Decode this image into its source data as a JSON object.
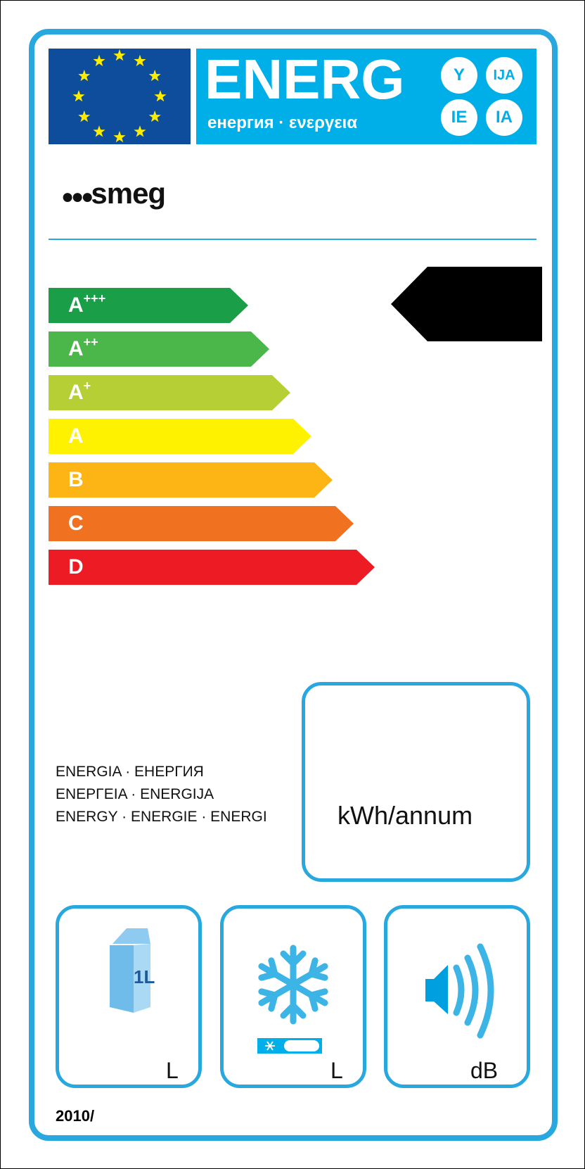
{
  "header": {
    "title": "ENERG",
    "subtitle": "енергия · ενεργεια",
    "suffixes": [
      "Y",
      "IJA",
      "IE",
      "IA"
    ]
  },
  "brand": "smeg",
  "scale": [
    {
      "label": "A",
      "sup": "+++",
      "color": "#1a9f48"
    },
    {
      "label": "A",
      "sup": "++",
      "color": "#4bb649"
    },
    {
      "label": "A",
      "sup": "+",
      "color": "#b5cf34"
    },
    {
      "label": "A",
      "sup": "",
      "color": "#fff200"
    },
    {
      "label": "B",
      "sup": "",
      "color": "#fcb514"
    },
    {
      "label": "C",
      "sup": "",
      "color": "#f07220"
    },
    {
      "label": "D",
      "sup": "",
      "color": "#ed1c24"
    }
  ],
  "energy_lines": [
    "ENERGIA · ЕНЕРГИЯ",
    "ΕΝΕΡΓΕΙΑ · ENERGIJA",
    "ENERGY · ENERGIE · ENERGI"
  ],
  "consumption_unit": "kWh/annum",
  "fresh_unit": "L",
  "frozen_unit": "L",
  "noise_unit": "dB",
  "carton_label": "1L",
  "regulation": "2010/"
}
